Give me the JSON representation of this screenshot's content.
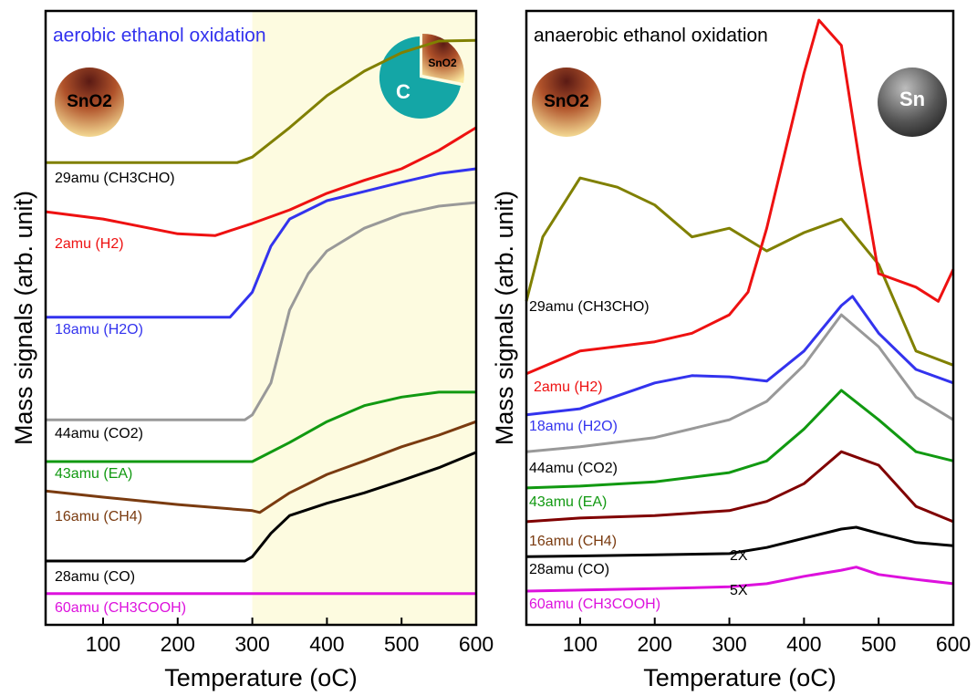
{
  "chart_data": [
    {
      "type": "line",
      "title": "aerobic ethanol oxidation",
      "title_color": "#3333ee",
      "xlabel": "Temperature (oC)",
      "ylabel": "Mass signals (arb. unit)",
      "xlim": [
        23,
        600
      ],
      "xticks": [
        100,
        200,
        300,
        400,
        500,
        600
      ],
      "ylim": [
        0,
        100
      ],
      "shade": [
        300,
        600
      ],
      "shade_color": "#fdfbe0",
      "icons": [
        "SnO2",
        "C",
        "SnO2"
      ],
      "series": [
        {
          "name": "29amu (CH3CHO)",
          "color": "#808000",
          "label_color": "#000000",
          "x": [
            23,
            100,
            200,
            280,
            300,
            350,
            400,
            450,
            500,
            550,
            600
          ],
          "values": [
            75.3,
            75.3,
            75.3,
            75.3,
            76.2,
            81.0,
            86.2,
            90.2,
            93.2,
            95.1,
            95.2
          ]
        },
        {
          "name": "2amu (H2)",
          "color": "#ee1111",
          "label_color": "#ee1111",
          "x": [
            23,
            100,
            150,
            200,
            250,
            300,
            350,
            400,
            450,
            500,
            550,
            600
          ],
          "values": [
            67.3,
            66.1,
            64.9,
            63.7,
            63.4,
            65.4,
            67.6,
            70.3,
            72.4,
            74.3,
            77.3,
            81.0
          ]
        },
        {
          "name": "18amu (H2O)",
          "color": "#3333ee",
          "label_color": "#3333ee",
          "x": [
            23,
            100,
            200,
            270,
            300,
            325,
            350,
            400,
            450,
            500,
            550,
            600
          ],
          "values": [
            50.1,
            50.1,
            50.1,
            50.1,
            54.2,
            61.7,
            66.1,
            69.1,
            70.6,
            72.1,
            73.5,
            74.3
          ]
        },
        {
          "name": "44amu (CO2)",
          "color": "#999999",
          "label_color": "#000000",
          "x": [
            23,
            100,
            200,
            290,
            300,
            325,
            350,
            375,
            400,
            450,
            500,
            550,
            600
          ],
          "values": [
            33.4,
            33.4,
            33.4,
            33.4,
            34.2,
            39.4,
            51.3,
            57.2,
            60.9,
            64.6,
            66.9,
            68.2,
            68.8
          ]
        },
        {
          "name": "43amu (EA)",
          "color": "#119911",
          "label_color": "#119911",
          "x": [
            23,
            100,
            200,
            300,
            350,
            400,
            450,
            500,
            550,
            600
          ],
          "values": [
            26.6,
            26.6,
            26.6,
            26.6,
            29.7,
            33.1,
            35.7,
            37.1,
            37.9,
            37.9
          ]
        },
        {
          "name": "16amu (CH4)",
          "color": "#7a3b10",
          "label_color": "#7a3b10",
          "x": [
            23,
            100,
            200,
            300,
            310,
            350,
            400,
            450,
            500,
            550,
            600
          ],
          "values": [
            21.8,
            20.8,
            19.6,
            18.6,
            18.3,
            21.5,
            24.5,
            26.7,
            29.0,
            30.9,
            33.1
          ]
        },
        {
          "name": "28amu (CO)",
          "color": "#000000",
          "label_color": "#000000",
          "x": [
            23,
            100,
            200,
            290,
            300,
            325,
            350,
            400,
            450,
            500,
            550,
            600
          ],
          "values": [
            10.4,
            10.4,
            10.4,
            10.4,
            11.1,
            14.9,
            17.8,
            19.8,
            21.5,
            23.5,
            25.6,
            28.1
          ]
        },
        {
          "name": "60amu (CH3COOH)",
          "color": "#dd11dd",
          "label_color": "#dd11dd",
          "x": [
            23,
            600
          ],
          "values": [
            5.1,
            5.1
          ]
        }
      ]
    },
    {
      "type": "line",
      "title": "anaerobic ethanol oxidation",
      "title_color": "#000000",
      "xlabel": "Temperature (oC)",
      "ylabel": "Mass signals (arb. unit)",
      "xlim": [
        28,
        600
      ],
      "xticks": [
        100,
        200,
        300,
        400,
        500,
        600
      ],
      "ylim": [
        0,
        100
      ],
      "icons": [
        "SnO2",
        "Sn"
      ],
      "annotations": [
        "2X",
        "5X"
      ],
      "series": [
        {
          "name": "29amu (CH3CHO)",
          "color": "#808000",
          "label_color": "#000000",
          "x": [
            28,
            50,
            100,
            150,
            200,
            250,
            300,
            350,
            400,
            450,
            500,
            550,
            600
          ],
          "values": [
            52.7,
            63.2,
            72.8,
            71.3,
            68.4,
            63.2,
            64.6,
            60.9,
            63.9,
            66.1,
            58.7,
            44.6,
            42.3
          ]
        },
        {
          "name": "2amu (H2)",
          "color": "#ee1111",
          "label_color": "#ee1111",
          "x": [
            28,
            100,
            200,
            250,
            300,
            325,
            350,
            400,
            420,
            450,
            475,
            500,
            550,
            580,
            600
          ],
          "values": [
            40.9,
            44.6,
            46.1,
            47.5,
            50.5,
            54.2,
            64.6,
            89.9,
            98.5,
            94.4,
            75.0,
            57.2,
            55.0,
            52.7,
            57.9
          ]
        },
        {
          "name": "18amu (H2O)",
          "color": "#3333ee",
          "label_color": "#3333ee",
          "x": [
            28,
            100,
            200,
            250,
            300,
            350,
            400,
            450,
            465,
            500,
            550,
            600
          ],
          "values": [
            34.2,
            35.2,
            39.4,
            40.6,
            40.4,
            39.7,
            44.6,
            52.0,
            53.5,
            47.5,
            41.6,
            39.4
          ]
        },
        {
          "name": "44amu (CO2)",
          "color": "#999999",
          "label_color": "#000000",
          "x": [
            28,
            100,
            200,
            300,
            350,
            400,
            450,
            500,
            550,
            600
          ],
          "values": [
            28.2,
            29.0,
            30.5,
            33.4,
            36.4,
            42.3,
            50.5,
            45.3,
            37.1,
            33.4
          ]
        },
        {
          "name": "43amu (EA)",
          "color": "#119911",
          "label_color": "#119911",
          "x": [
            28,
            100,
            200,
            300,
            350,
            400,
            450,
            500,
            550,
            600
          ],
          "values": [
            22.3,
            22.6,
            23.3,
            24.8,
            26.7,
            31.9,
            38.2,
            33.4,
            28.2,
            26.7
          ]
        },
        {
          "name": "16amu (CH4)",
          "color": "#800000",
          "label_color": "#7a3b10",
          "x": [
            28,
            100,
            200,
            300,
            350,
            400,
            450,
            500,
            550,
            600
          ],
          "values": [
            16.8,
            17.4,
            17.8,
            18.6,
            20.1,
            23.0,
            28.2,
            26.0,
            19.3,
            16.8
          ]
        },
        {
          "name": "28amu (CO)",
          "color": "#000000",
          "label_color": "#000000",
          "x": [
            28,
            200,
            300,
            350,
            400,
            450,
            470,
            500,
            550,
            600
          ],
          "values": [
            11.1,
            11.4,
            11.6,
            12.6,
            14.1,
            15.6,
            15.9,
            14.9,
            13.4,
            12.9
          ]
        },
        {
          "name": "60amu (CH3COOH)",
          "color": "#dd11dd",
          "label_color": "#dd11dd",
          "x": [
            28,
            200,
            300,
            350,
            400,
            450,
            470,
            500,
            550,
            600
          ],
          "values": [
            5.5,
            5.9,
            6.2,
            6.7,
            7.9,
            8.9,
            9.4,
            8.2,
            7.4,
            6.7
          ]
        }
      ]
    }
  ]
}
